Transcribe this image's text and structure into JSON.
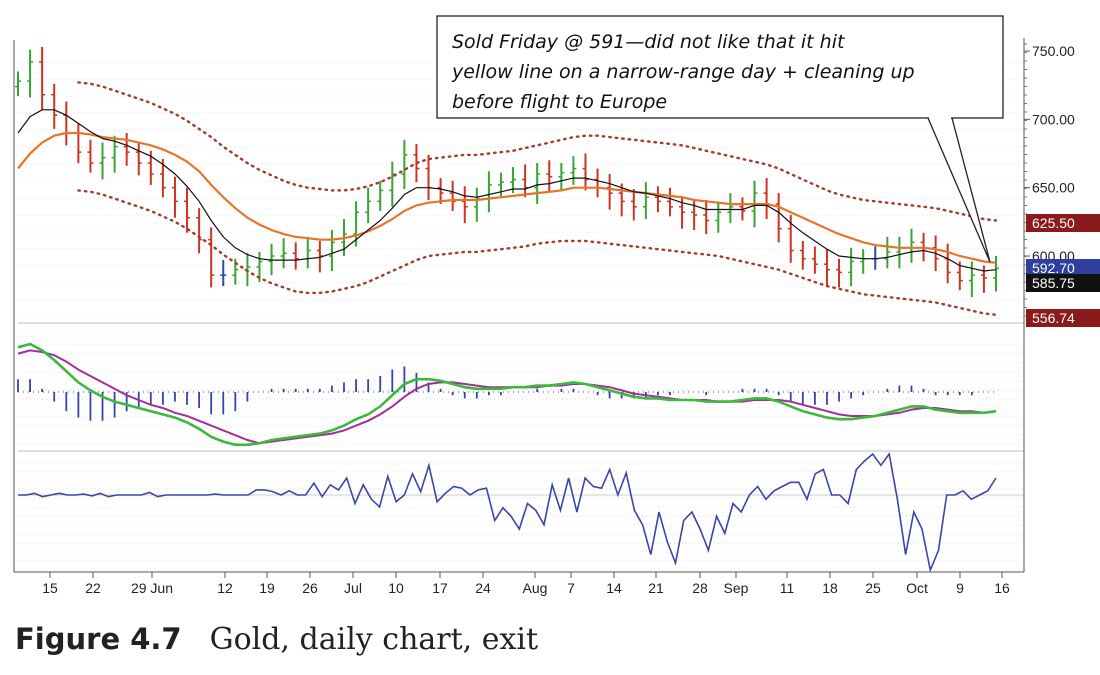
{
  "chart_data": {
    "type": "line",
    "title": "Gold, daily chart, exit",
    "figure_label": "Figure 4.7",
    "figure_title": "Gold, daily chart, exit",
    "x_tick_labels": [
      "15",
      "22",
      "29 Jun",
      "12",
      "19",
      "26",
      "Jul",
      "10",
      "17",
      "24",
      "Aug",
      "7",
      "14",
      "21",
      "28",
      "Sep",
      "11",
      "18",
      "25",
      "Oct",
      "9",
      "16"
    ],
    "y_tick_labels": [
      "750.00",
      "700.00",
      "650.00",
      "600.00"
    ],
    "ylim": [
      555,
      755
    ],
    "price_tags": [
      {
        "label": "625.50",
        "value": 625.5,
        "color": "#8b1a1a"
      },
      {
        "label": "592.70",
        "value": 592.7,
        "color": "#2f3f9e"
      },
      {
        "label": "585.75",
        "value": 585.75,
        "color": "#111111"
      },
      {
        "label": "556.74",
        "value": 556.74,
        "color": "#8b1a1a"
      }
    ],
    "annotation": "Sold Friday @ 591—did not like that it hit yellow line on a narrow-range day + cleaning up before flight to Europe",
    "annotation_lines": [
      "Sold Friday @ 591—did not like that it hit",
      "yellow line on a narrow-range day + cleaning up",
      "before flight to Europe"
    ],
    "colors": {
      "up_bar": "#3aa335",
      "down_bar": "#cc3322",
      "neutral_bar": "#3344aa",
      "ema_fast": "#111111",
      "ema_slow": "#e8742a",
      "envelope": "#a83a2a",
      "macd_fast": "#3cb83c",
      "macd_slow": "#a0309a",
      "histogram": "#3344aa",
      "force_index": "#3a46a8"
    },
    "series": [
      {
        "name": "price_close",
        "values": [
          728,
          742,
          718,
          703,
          690,
          676,
          668,
          672,
          680,
          676,
          668,
          660,
          650,
          640,
          628,
          612,
          586,
          586,
          590,
          592,
          596,
          600,
          602,
          598,
          604,
          600,
          610,
          616,
          632,
          640,
          648,
          660,
          674,
          664,
          650,
          646,
          640,
          636,
          642,
          652,
          654,
          656,
          650,
          660,
          658,
          661,
          664,
          656,
          650,
          646,
          640,
          636,
          643,
          640,
          636,
          632,
          630,
          626,
          632,
          636,
          633,
          646,
          638,
          620,
          604,
          598,
          594,
          590,
          588,
          596,
          598,
          598,
          603,
          606,
          610,
          606,
          598,
          588,
          582,
          586,
          584,
          591
        ]
      },
      {
        "name": "ema_fast",
        "values": [
          690,
          702,
          707,
          707,
          703,
          697,
          691,
          686,
          684,
          681,
          677,
          673,
          667,
          660,
          651,
          640,
          626,
          614,
          606,
          601,
          598,
          597,
          597,
          597,
          598,
          599,
          602,
          605,
          612,
          619,
          626,
          635,
          645,
          650,
          650,
          649,
          647,
          644,
          643,
          645,
          647,
          649,
          649,
          652,
          653,
          655,
          657,
          657,
          655,
          653,
          650,
          647,
          646,
          644,
          642,
          639,
          637,
          634,
          634,
          634,
          634,
          637,
          637,
          632,
          624,
          617,
          611,
          605,
          600,
          599,
          598,
          598,
          599,
          601,
          603,
          604,
          602,
          598,
          593,
          591,
          589,
          590
        ]
      },
      {
        "name": "ema_slow",
        "values": [
          664,
          675,
          683,
          688,
          690,
          690,
          689,
          687,
          686,
          685,
          683,
          681,
          678,
          674,
          669,
          662,
          652,
          643,
          635,
          628,
          623,
          619,
          616,
          614,
          613,
          612,
          612,
          613,
          615,
          618,
          622,
          627,
          633,
          637,
          639,
          640,
          641,
          641,
          641,
          642,
          643,
          644,
          645,
          646,
          647,
          648,
          650,
          650,
          650,
          649,
          648,
          647,
          646,
          645,
          644,
          643,
          641,
          640,
          639,
          638,
          638,
          638,
          638,
          636,
          632,
          628,
          624,
          620,
          616,
          613,
          610,
          608,
          607,
          606,
          606,
          606,
          605,
          603,
          600,
          598,
          596,
          595
        ]
      },
      {
        "name": "envelope_upper",
        "values": [
          null,
          null,
          null,
          null,
          null,
          727,
          726,
          724,
          721,
          718,
          715,
          712,
          708,
          704,
          699,
          693,
          687,
          680,
          674,
          668,
          663,
          659,
          655,
          652,
          650,
          649,
          648,
          648,
          649,
          651,
          654,
          658,
          663,
          668,
          671,
          672,
          673,
          674,
          674,
          675,
          676,
          677,
          679,
          681,
          683,
          685,
          687,
          688,
          688,
          687,
          686,
          685,
          684,
          683,
          682,
          681,
          679,
          677,
          675,
          673,
          671,
          669,
          667,
          664,
          660,
          656,
          652,
          648,
          645,
          643,
          641,
          640,
          639,
          638,
          637,
          636,
          635,
          633,
          631,
          629,
          627,
          626
        ]
      },
      {
        "name": "envelope_lower",
        "values": [
          null,
          null,
          null,
          null,
          null,
          648,
          647,
          645,
          642,
          639,
          636,
          633,
          629,
          625,
          620,
          614,
          608,
          601,
          595,
          589,
          584,
          580,
          577,
          574,
          573,
          573,
          574,
          576,
          578,
          581,
          585,
          589,
          593,
          597,
          600,
          601,
          602,
          603,
          603,
          604,
          605,
          606,
          607,
          609,
          610,
          611,
          611,
          611,
          610,
          609,
          608,
          607,
          606,
          605,
          604,
          603,
          602,
          601,
          600,
          598,
          596,
          594,
          592,
          590,
          587,
          584,
          581,
          578,
          576,
          574,
          572,
          571,
          570,
          569,
          568,
          567,
          566,
          564,
          562,
          560,
          558,
          557
        ]
      },
      {
        "name": "macd_fast",
        "values": [
          28,
          30,
          26,
          20,
          13,
          6,
          1,
          -3,
          -6,
          -8,
          -10,
          -12,
          -14,
          -16,
          -19,
          -23,
          -28,
          -31,
          -33,
          -33,
          -32,
          -30,
          -29,
          -28,
          -27,
          -26,
          -24,
          -21,
          -17,
          -14,
          -9,
          -2,
          5,
          8,
          8,
          7,
          5,
          3,
          2,
          2,
          2,
          3,
          3,
          4,
          4,
          5,
          6,
          5,
          3,
          1,
          -1,
          -3,
          -4,
          -4,
          -5,
          -5,
          -5,
          -6,
          -6,
          -6,
          -5,
          -4,
          -4,
          -6,
          -9,
          -12,
          -14,
          -16,
          -17,
          -17,
          -16,
          -15,
          -13,
          -11,
          -9,
          -9,
          -11,
          -12,
          -13,
          -13,
          -13,
          -12
        ]
      },
      {
        "name": "macd_slow",
        "values": [
          24,
          26,
          25,
          23,
          19,
          14,
          10,
          6,
          2,
          -2,
          -5,
          -8,
          -10,
          -13,
          -15,
          -18,
          -21,
          -24,
          -27,
          -30,
          -32,
          -31,
          -30,
          -29,
          -28,
          -27,
          -26,
          -24,
          -21,
          -18,
          -14,
          -9,
          -3,
          2,
          5,
          6,
          6,
          5,
          4,
          3,
          3,
          3,
          3,
          3,
          4,
          4,
          5,
          5,
          4,
          3,
          1,
          -1,
          -2,
          -3,
          -4,
          -5,
          -5,
          -5,
          -6,
          -6,
          -6,
          -5,
          -5,
          -5,
          -6,
          -8,
          -10,
          -12,
          -14,
          -15,
          -15,
          -15,
          -14,
          -13,
          -11,
          -10,
          -10,
          -11,
          -12,
          -12,
          -13,
          -12
        ]
      },
      {
        "name": "force_index",
        "values": [
          0,
          0,
          2,
          -2,
          0,
          2,
          0,
          0,
          1,
          -1,
          2,
          -2,
          0,
          0,
          0,
          0,
          3,
          -2,
          0,
          0,
          0,
          0,
          0,
          0,
          1,
          0,
          0,
          0,
          0,
          6,
          6,
          4,
          0,
          5,
          0,
          0,
          14,
          -2,
          12,
          6,
          20,
          -10,
          12,
          -5,
          -14,
          22,
          -8,
          0,
          25,
          4,
          35,
          -8,
          2,
          10,
          8,
          0,
          6,
          8,
          -30,
          -15,
          -25,
          -40,
          -10,
          -18,
          -35,
          12,
          -18,
          20,
          -20,
          20,
          10,
          8,
          30,
          0,
          26,
          -18,
          -35,
          -70,
          -20,
          -55,
          -80,
          -30,
          -20,
          -40,
          -65,
          -25,
          -45,
          -10,
          -20,
          0,
          10,
          -5,
          5,
          10,
          15,
          15,
          -5,
          25,
          30,
          0,
          0,
          -10,
          30,
          40,
          50,
          35,
          50,
          -5,
          -70,
          -20,
          -40,
          -90,
          -65,
          0,
          0,
          5,
          -5,
          0,
          5,
          20
        ]
      }
    ]
  }
}
